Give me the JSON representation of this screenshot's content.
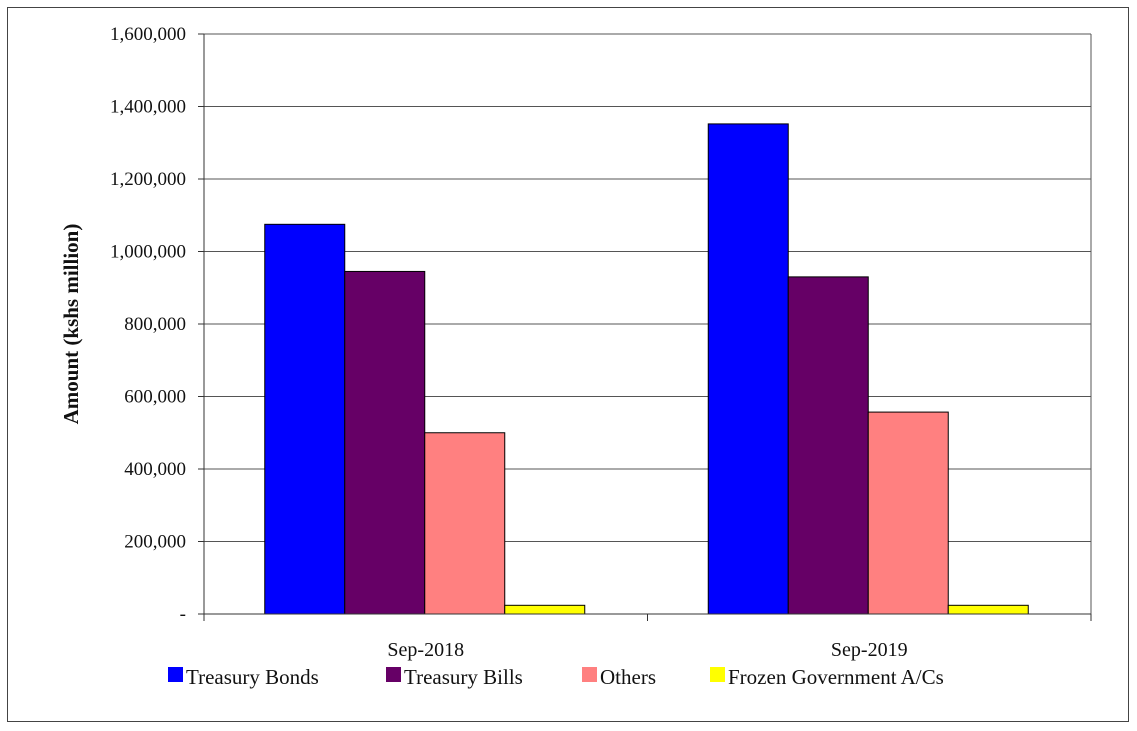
{
  "chart_data": {
    "type": "bar",
    "title": "",
    "xlabel": "",
    "ylabel": "Amount (kshs million)",
    "categories": [
      "Sep-2018",
      "Sep-2019"
    ],
    "ylim": [
      0,
      1600000
    ],
    "y_ticks": [
      0,
      200000,
      400000,
      600000,
      800000,
      1000000,
      1200000,
      1400000,
      1600000
    ],
    "y_tick_labels": [
      "-",
      "200,000",
      "400,000",
      "600,000",
      "800,000",
      "1,000,000",
      "1,200,000",
      "1,400,000",
      "1,600,000"
    ],
    "grid": true,
    "legend_position": "bottom",
    "series": [
      {
        "name": "Treasury Bonds",
        "color": "#0000ff",
        "values": [
          1075000,
          1352000
        ]
      },
      {
        "name": "Treasury Bills",
        "color": "#660066",
        "values": [
          945000,
          930000
        ]
      },
      {
        "name": "Others",
        "color": "#ff8080",
        "values": [
          500000,
          557000
        ]
      },
      {
        "name": "Frozen Government A/Cs",
        "color": "#ffff00",
        "values": [
          24000,
          24000
        ]
      }
    ]
  }
}
